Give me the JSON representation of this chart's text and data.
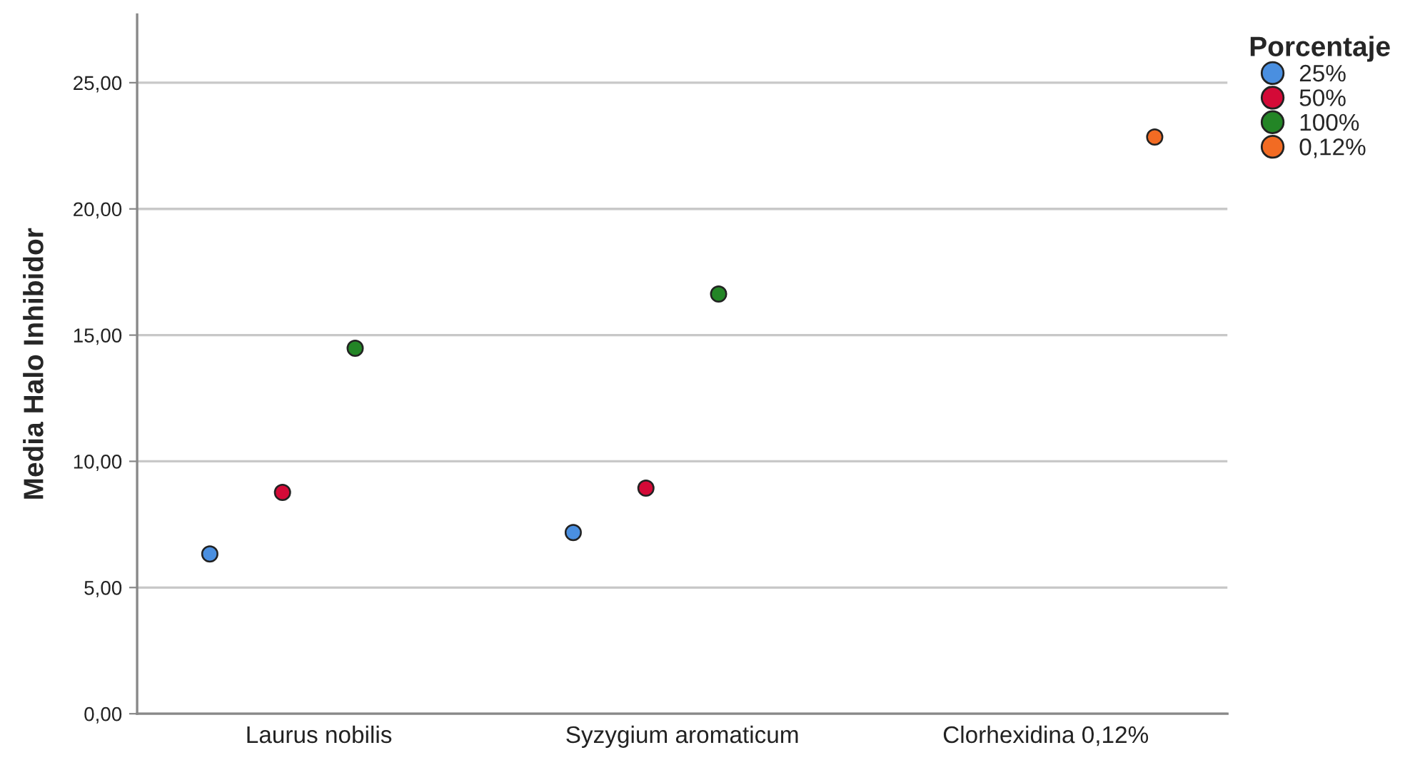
{
  "chart_data": {
    "type": "scatter",
    "ylabel": "Media Halo Inhibidor",
    "legend_title": "Porcentaje",
    "categories": [
      "Laurus nobilis",
      "Syzygium aromaticum",
      "Clorhexidina 0,12%"
    ],
    "series": [
      {
        "name": "25%",
        "color": "#4a8fe0",
        "values": [
          6.33,
          7.18,
          null
        ]
      },
      {
        "name": "50%",
        "color": "#d40a37",
        "values": [
          8.77,
          8.94,
          null
        ]
      },
      {
        "name": "100%",
        "color": "#238526",
        "values": [
          14.48,
          16.63,
          null
        ]
      },
      {
        "name": "0,12%",
        "color": "#f26b23",
        "values": [
          null,
          null,
          22.85
        ]
      }
    ],
    "ylim": [
      0,
      27.7
    ],
    "yticks": [
      {
        "value": 0,
        "label": "0,00"
      },
      {
        "value": 5,
        "label": "5,00"
      },
      {
        "value": 10,
        "label": "10,00"
      },
      {
        "value": 15,
        "label": "15,00"
      },
      {
        "value": 20,
        "label": "20,00"
      },
      {
        "value": 25,
        "label": "25,00"
      }
    ],
    "grid": "y",
    "legend": "top right",
    "marker": "circle"
  }
}
